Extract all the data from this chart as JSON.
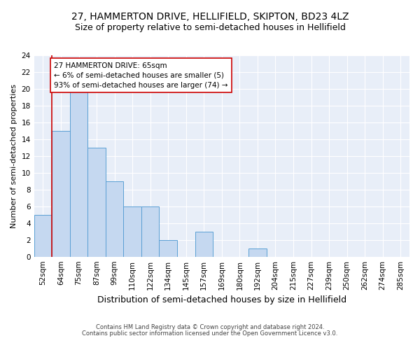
{
  "title1": "27, HAMMERTON DRIVE, HELLIFIELD, SKIPTON, BD23 4LZ",
  "title2": "Size of property relative to semi-detached houses in Hellifield",
  "xlabel": "Distribution of semi-detached houses by size in Hellifield",
  "ylabel": "Number of semi-detached properties",
  "footnote1": "Contains HM Land Registry data © Crown copyright and database right 2024.",
  "footnote2": "Contains public sector information licensed under the Open Government Licence v3.0.",
  "annotation_title": "27 HAMMERTON DRIVE: 65sqm",
  "annotation_line2": "← 6% of semi-detached houses are smaller (5)",
  "annotation_line3": "93% of semi-detached houses are larger (74) →",
  "bar_labels": [
    "52sqm",
    "64sqm",
    "75sqm",
    "87sqm",
    "99sqm",
    "110sqm",
    "122sqm",
    "134sqm",
    "145sqm",
    "157sqm",
    "169sqm",
    "180sqm",
    "192sqm",
    "204sqm",
    "215sqm",
    "227sqm",
    "239sqm",
    "250sqm",
    "262sqm",
    "274sqm",
    "285sqm"
  ],
  "bar_values": [
    5,
    15,
    20,
    13,
    9,
    6,
    6,
    2,
    0,
    3,
    0,
    0,
    1,
    0,
    0,
    0,
    0,
    0,
    0,
    0,
    0
  ],
  "bar_color": "#c5d8f0",
  "bar_edge_color": "#5a9fd4",
  "vline_color": "#cc0000",
  "annotation_box_color": "#ffffff",
  "annotation_box_edge": "#cc0000",
  "ylim": [
    0,
    24
  ],
  "yticks": [
    0,
    2,
    4,
    6,
    8,
    10,
    12,
    14,
    16,
    18,
    20,
    22,
    24
  ],
  "bg_color": "#e8eef8",
  "grid_color": "#ffffff",
  "title1_fontsize": 10,
  "title2_fontsize": 9,
  "xlabel_fontsize": 9,
  "ylabel_fontsize": 8,
  "tick_fontsize": 7.5,
  "annotation_fontsize": 7.5,
  "footnote_fontsize": 6
}
